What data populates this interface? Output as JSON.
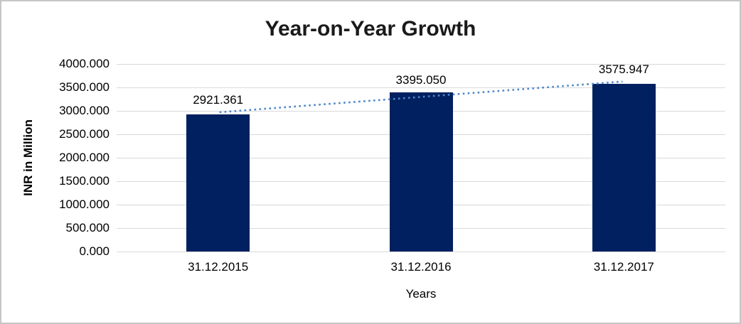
{
  "chart_data": {
    "type": "bar",
    "title": "Year-on-Year Growth",
    "categories": [
      "31.12.2015",
      "31.12.2016",
      "31.12.2017"
    ],
    "series": [
      {
        "name": "INR in Million",
        "values": [
          2921.361,
          3395.05,
          3575.947
        ]
      }
    ],
    "data_labels": [
      "2921.361",
      "3395.050",
      "3575.947"
    ],
    "xlabel": "Years",
    "ylabel": "INR in Million",
    "ylim": [
      0,
      4000
    ],
    "ytick_step": 500,
    "yticks": [
      "4000.000",
      "3500.000",
      "3000.000",
      "2500.000",
      "2000.000",
      "1500.000",
      "1000.000",
      "500.000",
      "0.000"
    ],
    "grid": true,
    "legend_position": "none",
    "trendline": {
      "type": "linear",
      "style": "dotted"
    },
    "colors": {
      "bar": "#002060",
      "trendline": "#4f87c9",
      "gridline": "#d9d9d9",
      "text": "#000000",
      "title_text": "#1a1a1a",
      "border": "#c6c6c6",
      "background": "#ffffff"
    }
  }
}
